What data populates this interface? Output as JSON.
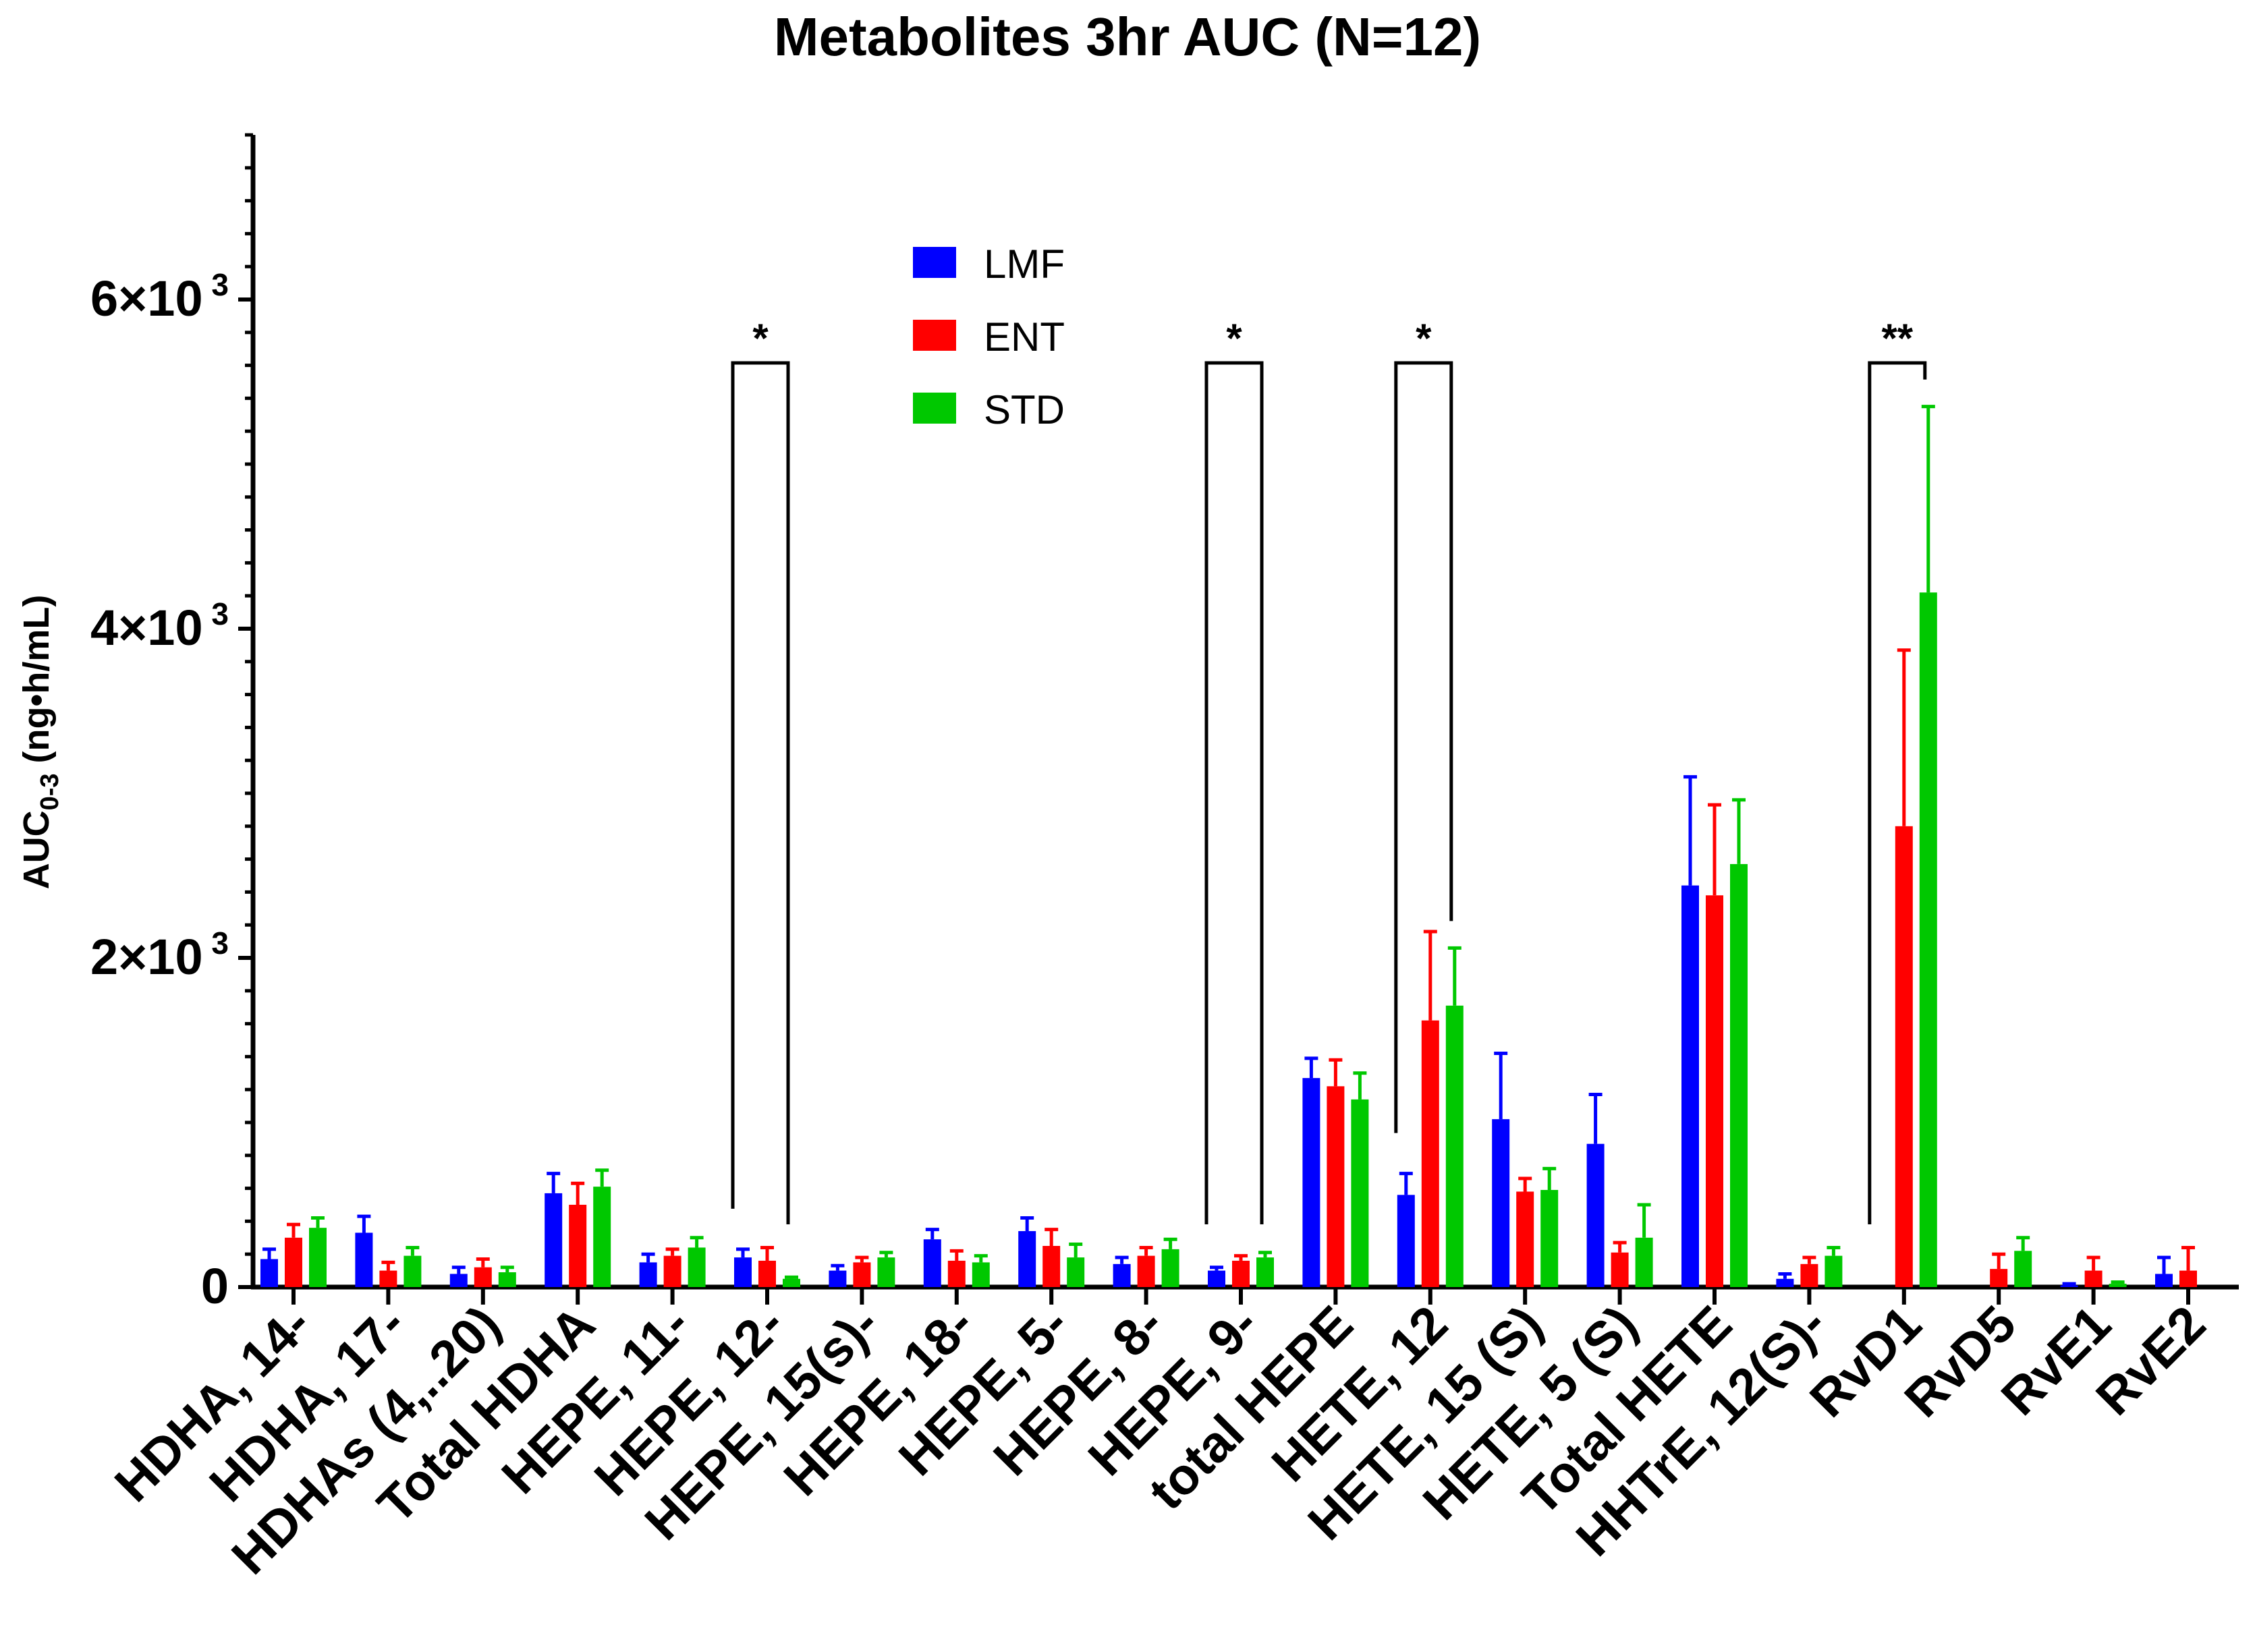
{
  "chart_data": {
    "type": "bar",
    "title": "Metabolites 3hr AUC (N=12)",
    "ylabel_main": "AUC",
    "ylabel_sub": "0-3",
    "ylabel_rest": " (ng•h/mL)",
    "xlabel": "",
    "ylim": [
      0,
      7000
    ],
    "yticks": [
      {
        "value": 0,
        "base": "0",
        "exp": ""
      },
      {
        "value": 2000,
        "base": "2×10",
        "exp": "3"
      },
      {
        "value": 4000,
        "base": "4×10",
        "exp": "3"
      },
      {
        "value": 6000,
        "base": "6×10",
        "exp": "3"
      }
    ],
    "grid": false,
    "legend_position": "top-center",
    "categories": [
      "HDHA, 14-",
      "HDHA, 17-",
      "HDHAs (4,..20)",
      "Total HDHA",
      "HEPE, 11-",
      "HEPE, 12-",
      "HEPE, 15(s)-",
      "HEPE, 18-",
      "HEPE, 5-",
      "HEPE, 8-",
      "HEPE, 9-",
      "total HEPE",
      "HETE, 12",
      "HETE, 15 (S)",
      "HETE, 5 (S)",
      "Total HETE",
      "HHTrE, 12(S)-",
      "RvD1",
      "RvD5",
      "RvE1",
      "RvE2"
    ],
    "series": [
      {
        "name": "LMF",
        "color": "#0000ff",
        "values": [
          170,
          330,
          80,
          570,
          150,
          180,
          100,
          290,
          340,
          140,
          100,
          1270,
          560,
          1020,
          870,
          2440,
          50,
          0,
          0,
          10,
          80
        ],
        "errors": [
          60,
          100,
          40,
          120,
          50,
          50,
          30,
          60,
          80,
          40,
          20,
          120,
          130,
          400,
          300,
          660,
          30,
          0,
          0,
          10,
          100
        ]
      },
      {
        "name": "ENT",
        "color": "#ff0000",
        "values": [
          300,
          100,
          120,
          500,
          190,
          160,
          150,
          160,
          250,
          190,
          160,
          1220,
          1620,
          580,
          210,
          2380,
          140,
          2800,
          110,
          100,
          100
        ],
        "errors": [
          80,
          50,
          50,
          130,
          40,
          80,
          30,
          60,
          100,
          50,
          30,
          160,
          540,
          80,
          60,
          550,
          40,
          1070,
          90,
          80,
          140
        ]
      },
      {
        "name": "STD",
        "color": "#00c800",
        "values": [
          360,
          190,
          90,
          610,
          240,
          50,
          180,
          150,
          180,
          230,
          180,
          1140,
          1710,
          590,
          300,
          2570,
          190,
          4220,
          220,
          20,
          0
        ],
        "errors": [
          60,
          50,
          30,
          100,
          60,
          10,
          30,
          40,
          80,
          60,
          30,
          160,
          350,
          130,
          200,
          390,
          50,
          1130,
          80,
          10,
          0
        ]
      }
    ],
    "significance": [
      {
        "category_index": 5,
        "label": "*"
      },
      {
        "category_index": 10,
        "label": "*"
      },
      {
        "category_index": 12,
        "label": "*"
      },
      {
        "category_index": 17,
        "label": "**"
      }
    ]
  }
}
